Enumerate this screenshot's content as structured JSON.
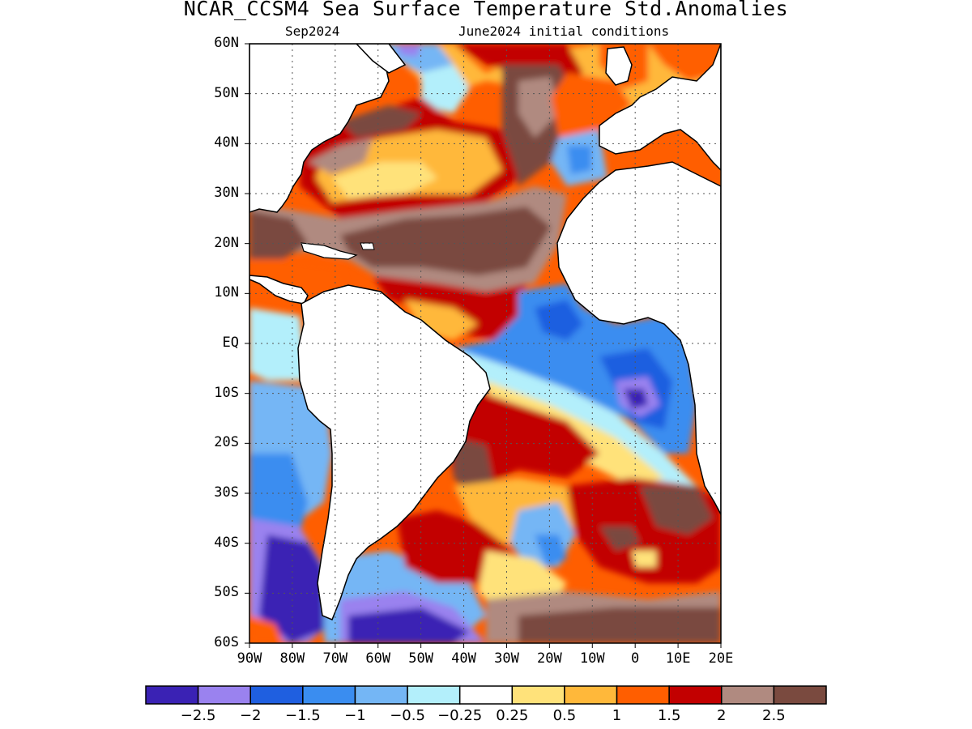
{
  "header": {
    "title": "NCAR_CCSM4 Sea Surface Temperature Std.Anomalies",
    "valid_time": "Sep2024",
    "init": "June2024 initial conditions"
  },
  "axes": {
    "lat_labels": [
      "60N",
      "50N",
      "40N",
      "30N",
      "20N",
      "10N",
      "EQ",
      "10S",
      "20S",
      "30S",
      "40S",
      "50S",
      "60S"
    ],
    "lon_labels": [
      "90W",
      "80W",
      "70W",
      "60W",
      "50W",
      "40W",
      "30W",
      "20W",
      "10W",
      "0",
      "10E",
      "20E"
    ]
  },
  "colorbar": {
    "colors": [
      "#3a22b4",
      "#9a82ef",
      "#1f5fe0",
      "#3a8df0",
      "#74b6f5",
      "#b3effb",
      "#ffffff",
      "#ffe27a",
      "#ffb83a",
      "#ff5e00",
      "#c20000",
      "#b08a80",
      "#7a4a3f"
    ],
    "labels": [
      "−2.5",
      "−2",
      "−1.5",
      "−1",
      "−0.5",
      "−0.25",
      "0.25",
      "0.5",
      "1",
      "1.5",
      "2",
      "2.5"
    ]
  }
}
